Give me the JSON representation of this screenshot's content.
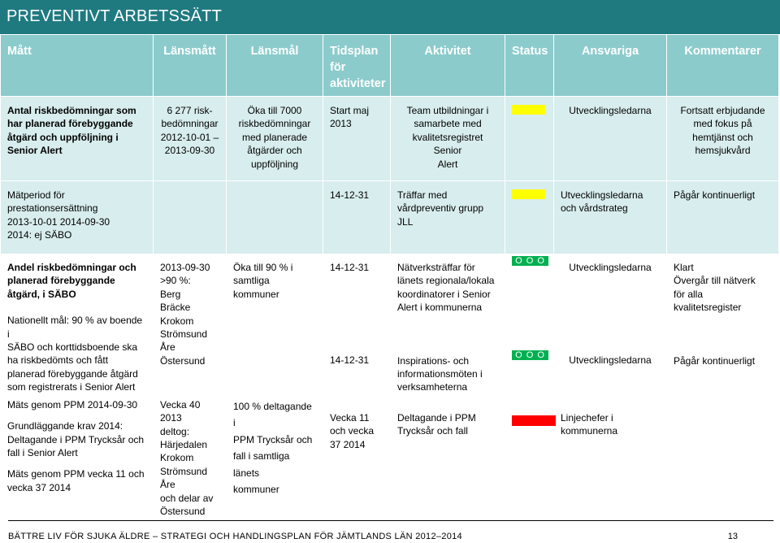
{
  "title": "PREVENTIVT ARBETSSÄTT",
  "headers": {
    "matt": "Mått",
    "lansmatt": "Länsmått",
    "lansmal": "Länsmål",
    "tidsplan": [
      "Tidsplan",
      "för",
      "aktiviteter"
    ],
    "aktivitet": "Aktivitet",
    "status": "Status",
    "ansvariga": "Ansvariga",
    "kommentarer": "Kommentarer"
  },
  "row1": {
    "matt": [
      "Antal riskbedömningar som",
      "har planerad förebyggande",
      "åtgärd och uppföljning i",
      "Senior Alert"
    ],
    "lansmatt": [
      "6 277 risk-",
      "bedömningar",
      "2012-10-01 –",
      "2013-09-30"
    ],
    "lansmal": [
      "Öka till 7000",
      "riskbedömningar",
      "med planerade",
      "åtgärder och",
      "uppföljning"
    ],
    "tidsplan": [
      "Start maj",
      "2013"
    ],
    "aktivitet": [
      "Team utbildningar i",
      "samarbete med",
      "kvalitetsregistret Senior",
      "Alert"
    ],
    "status_color": "#ffff00",
    "ansvariga": [
      "Utvecklingsledarna"
    ],
    "kommentarer": [
      "Fortsatt erbjudande",
      "med fokus på",
      "hemtjänst och",
      "hemsjukvård"
    ]
  },
  "row2": {
    "matt": [
      "Mätperiod för",
      "prestationsersättning",
      "2013-10-01 2014-09-30",
      "2014: ej SÄBO"
    ],
    "tidsplan": [
      "14-12-31"
    ],
    "aktivitet": [
      "Träffar med",
      "vårdpreventiv grupp",
      "JLL"
    ],
    "status_color": "#ffff00",
    "ansvariga": [
      "Utvecklingsledarna",
      "och vårdstrateg"
    ],
    "kommentarer": [
      "Pågår kontinuerligt"
    ]
  },
  "row3": {
    "matt_bold": [
      "Andel riskbedömningar och",
      "planerad förebyggande",
      "åtgärd, i SÄBO"
    ],
    "matt": [
      "Nationellt mål: 90 % av boende i",
      "SÄBO och korttidsboende ska",
      "ha riskbedömts och fått",
      "planerad  förebyggande åtgärd",
      "som registrerats i Senior Alert"
    ],
    "lansmatt": [
      "2013-09-30",
      ">90 %:",
      "Berg",
      "Bräcke",
      "Krokom",
      "Strömsund",
      "Åre",
      "Östersund"
    ],
    "lansmal": [
      "Öka till 90 % i",
      "samtliga kommuner"
    ],
    "tidsplan_a": [
      "14-12-31"
    ],
    "tidsplan_b": [
      "14-12-31"
    ],
    "aktivitet_a": [
      "Nätverksträffar för",
      "länets regionala/lokala",
      "koordinatorer i Senior",
      "Alert i kommunerna"
    ],
    "aktivitet_b": [
      "Inspirations- och",
      "informationsmöten i",
      "verksamheterna"
    ],
    "status_mark": "O O O O",
    "status_color": "#00b050",
    "ansvariga_a": [
      "Utvecklingsledarna"
    ],
    "ansvariga_b": [
      "Utvecklingsledarna"
    ],
    "kommentarer_a": [
      "Klart",
      "Övergår till nätverk",
      "för alla",
      "kvalitetsregister"
    ],
    "kommentarer_b": [
      "Pågår kontinuerligt"
    ]
  },
  "row4": {
    "matt_a": [
      "Mäts genom PPM 2014-09-30"
    ],
    "matt_b": [
      "Grundläggande krav 2014:",
      "Deltagande i PPM Trycksår och",
      "fall i Senior Alert"
    ],
    "matt_c": [
      "Mäts genom PPM vecka 11 och",
      "vecka 37 2014"
    ],
    "lansmatt": [
      "Vecka 40 2013",
      "deltog:",
      "Härjedalen",
      "Krokom",
      "Strömsund",
      "Åre",
      "och delar av",
      "Östersund"
    ],
    "lansmal": [
      "100 % deltagande i",
      "PPM Trycksår och",
      "fall i samtliga länets",
      "kommuner"
    ],
    "tidsplan": [
      "Vecka 11",
      "och vecka",
      "37 2014"
    ],
    "aktivitet": [
      "Deltagande i PPM",
      "Trycksår och fall"
    ],
    "status_color": "#ff0000",
    "ansvariga": [
      "Linjechefer i",
      "kommunerna"
    ]
  },
  "footer": {
    "text": "BÄTTRE LIV FÖR SJUKA ÄLDRE – STRATEGI OCH HANDLINGSPLAN FÖR JÄMTLANDS LÄN 2012–2014",
    "page": "13"
  }
}
